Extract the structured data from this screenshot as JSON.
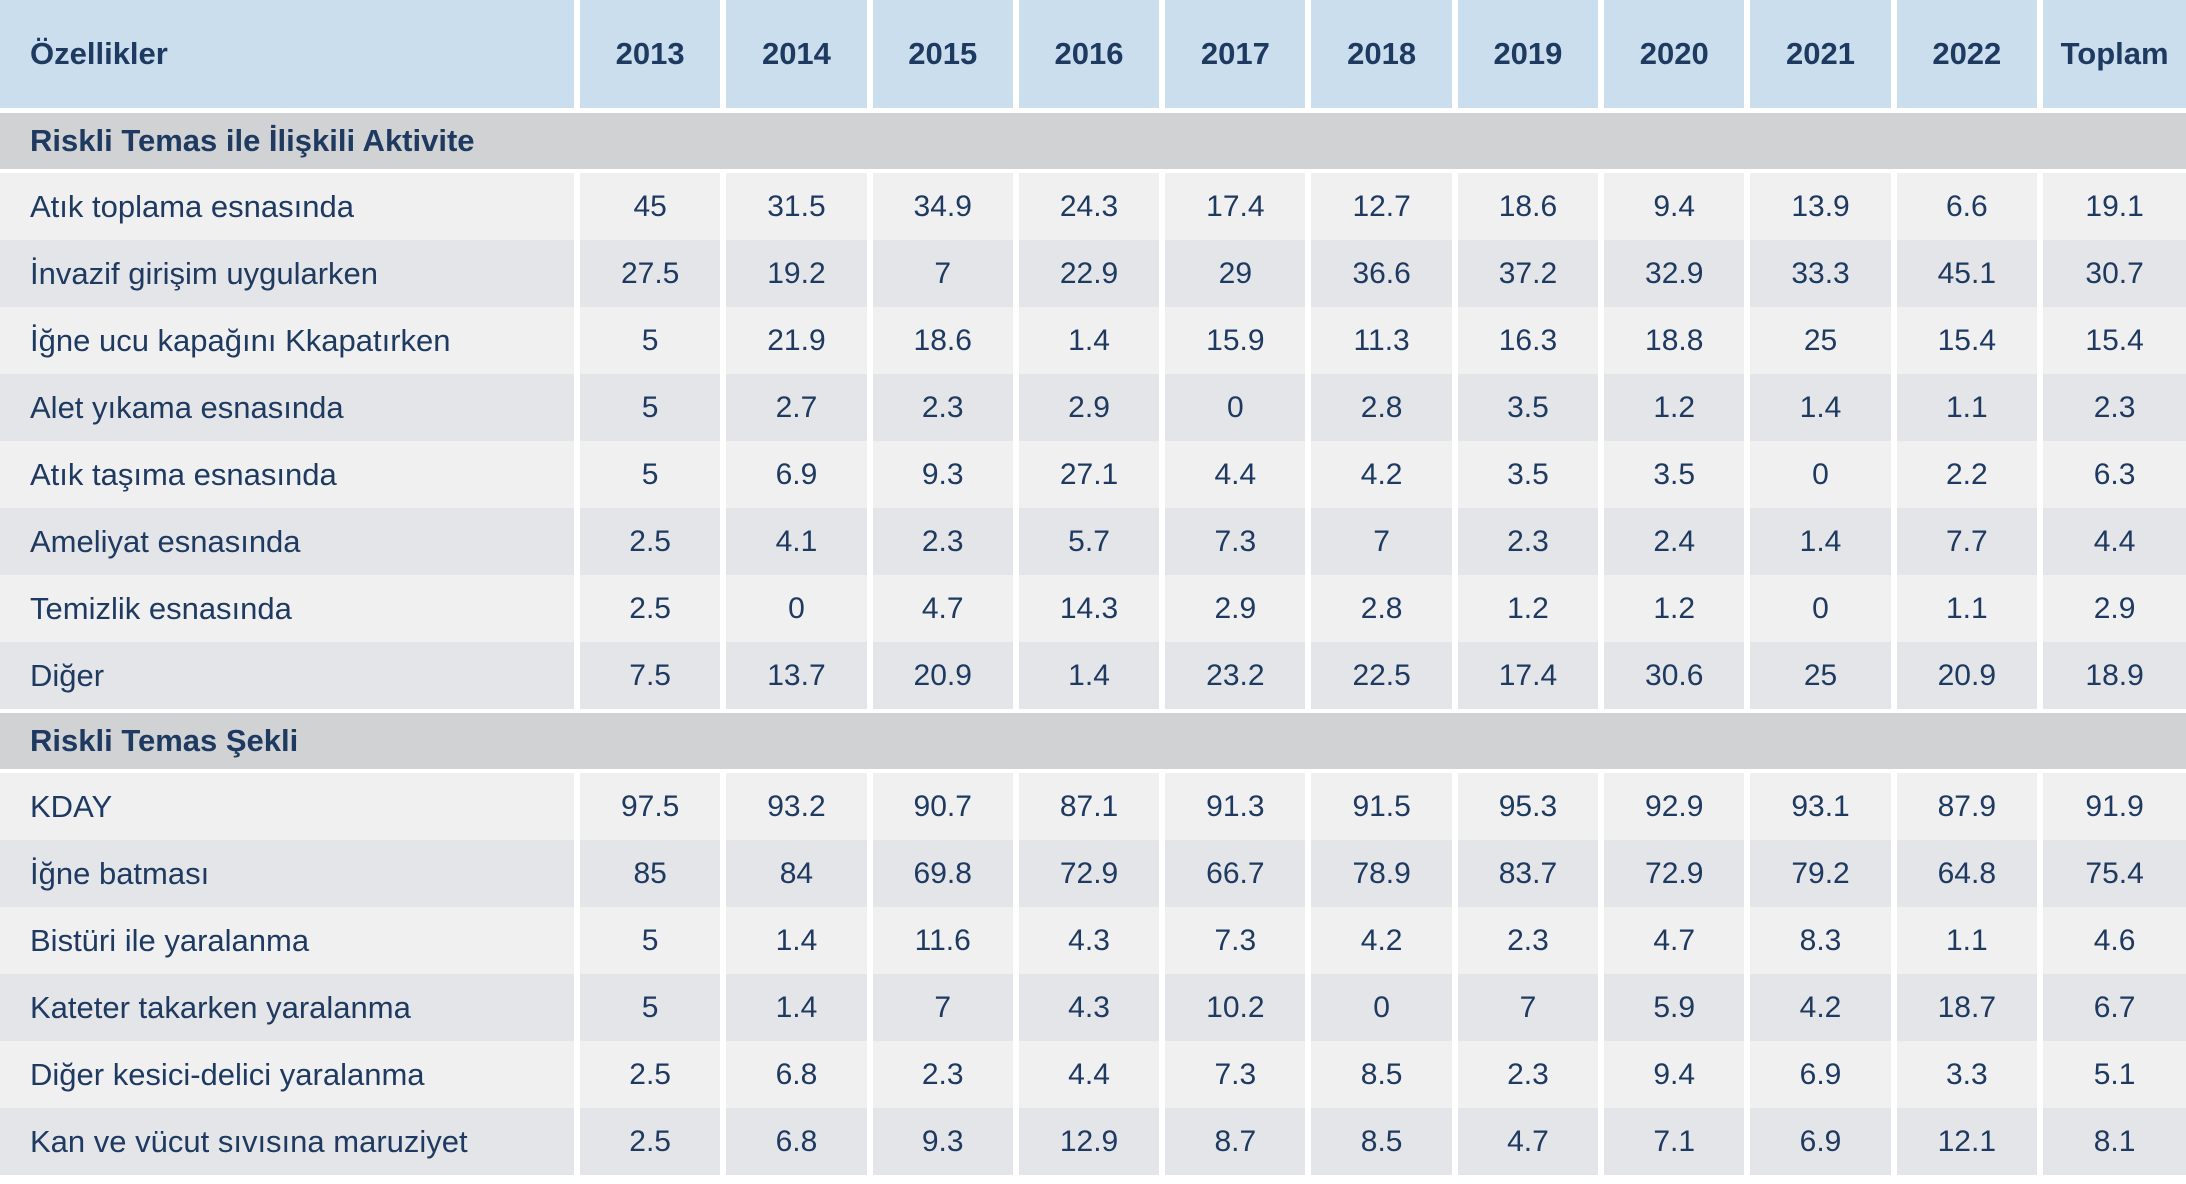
{
  "colors": {
    "header_bg": "#cbdeee",
    "section_bg": "#d1d2d4",
    "row_light": "#f0f0f1",
    "row_dark": "#e4e5e8",
    "text_navy": "#1e3a60",
    "separator": "#ffffff"
  },
  "table": {
    "header": [
      "Özellikler",
      "2013",
      "2014",
      "2015",
      "2016",
      "2017",
      "2018",
      "2019",
      "2020",
      "2021",
      "2022",
      "Toplam"
    ],
    "sections": [
      {
        "title": "Riskli Temas ile İlişkili Aktivite",
        "rows": [
          {
            "label": "Atık toplama esnasında",
            "values": [
              "45",
              "31.5",
              "34.9",
              "24.3",
              "17.4",
              "12.7",
              "18.6",
              "9.4",
              "13.9",
              "6.6",
              "19.1"
            ]
          },
          {
            "label": "İnvazif girişim uygularken",
            "values": [
              "27.5",
              "19.2",
              "7",
              "22.9",
              "29",
              "36.6",
              "37.2",
              "32.9",
              "33.3",
              "45.1",
              "30.7"
            ]
          },
          {
            "label": "İğne ucu kapağını Kkapatırken",
            "values": [
              "5",
              "21.9",
              "18.6",
              "1.4",
              "15.9",
              "11.3",
              "16.3",
              "18.8",
              "25",
              "15.4",
              "15.4"
            ]
          },
          {
            "label": "Alet yıkama esnasında",
            "values": [
              "5",
              "2.7",
              "2.3",
              "2.9",
              "0",
              "2.8",
              "3.5",
              "1.2",
              "1.4",
              "1.1",
              "2.3"
            ]
          },
          {
            "label": "Atık taşıma esnasında",
            "values": [
              "5",
              "6.9",
              "9.3",
              "27.1",
              "4.4",
              "4.2",
              "3.5",
              "3.5",
              "0",
              "2.2",
              "6.3"
            ]
          },
          {
            "label": "Ameliyat esnasında",
            "values": [
              "2.5",
              "4.1",
              "2.3",
              "5.7",
              "7.3",
              "7",
              "2.3",
              "2.4",
              "1.4",
              "7.7",
              "4.4"
            ]
          },
          {
            "label": "Temizlik esnasında",
            "values": [
              "2.5",
              "0",
              "4.7",
              "14.3",
              "2.9",
              "2.8",
              "1.2",
              "1.2",
              "0",
              "1.1",
              "2.9"
            ]
          },
          {
            "label": "Diğer",
            "values": [
              "7.5",
              "13.7",
              "20.9",
              "1.4",
              "23.2",
              "22.5",
              "17.4",
              "30.6",
              "25",
              "20.9",
              "18.9"
            ]
          }
        ]
      },
      {
        "title": "Riskli Temas Şekli",
        "rows": [
          {
            "label": "KDAY",
            "values": [
              "97.5",
              "93.2",
              "90.7",
              "87.1",
              "91.3",
              "91.5",
              "95.3",
              "92.9",
              "93.1",
              "87.9",
              "91.9"
            ]
          },
          {
            "label": "İğne batması",
            "values": [
              "85",
              "84",
              "69.8",
              "72.9",
              "66.7",
              "78.9",
              "83.7",
              "72.9",
              "79.2",
              "64.8",
              "75.4"
            ]
          },
          {
            "label": "Bistüri ile yaralanma",
            "values": [
              "5",
              "1.4",
              "11.6",
              "4.3",
              "7.3",
              "4.2",
              "2.3",
              "4.7",
              "8.3",
              "1.1",
              "4.6"
            ]
          },
          {
            "label": "Kateter takarken yaralanma",
            "values": [
              "5",
              "1.4",
              "7",
              "4.3",
              "10.2",
              "0",
              "7",
              "5.9",
              "4.2",
              "18.7",
              "6.7"
            ]
          },
          {
            "label": "Diğer kesici-delici yaralanma",
            "values": [
              "2.5",
              "6.8",
              "2.3",
              "4.4",
              "7.3",
              "8.5",
              "2.3",
              "9.4",
              "6.9",
              "3.3",
              "5.1"
            ]
          },
          {
            "label": "Kan ve vücut sıvısına maruziyet",
            "values": [
              "2.5",
              "6.8",
              "9.3",
              "12.9",
              "8.7",
              "8.5",
              "4.7",
              "7.1",
              "6.9",
              "12.1",
              "8.1"
            ]
          }
        ]
      }
    ]
  }
}
